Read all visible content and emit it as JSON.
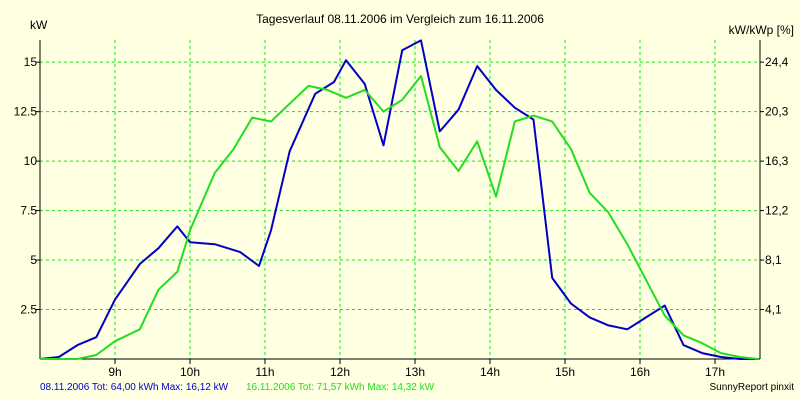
{
  "chart_data": {
    "type": "line",
    "title": "Tagesverlauf 08.11.2006 im Vergleich zum 16.11.2006",
    "ylabel_left": "kW",
    "ylabel_right": "kW/kWp [%]",
    "xlim": [
      8.0,
      17.6
    ],
    "ylim": [
      0,
      16.12
    ],
    "x_ticks": [
      {
        "value": 9,
        "label": "9h"
      },
      {
        "value": 10,
        "label": "10h"
      },
      {
        "value": 11,
        "label": "11h"
      },
      {
        "value": 12,
        "label": "12h"
      },
      {
        "value": 13,
        "label": "13h"
      },
      {
        "value": 14,
        "label": "14h"
      },
      {
        "value": 15,
        "label": "15h"
      },
      {
        "value": 16,
        "label": "16h"
      },
      {
        "value": 17,
        "label": "17h"
      }
    ],
    "y_ticks_left": [
      {
        "value": 2.5,
        "label": "2.5"
      },
      {
        "value": 5,
        "label": "5"
      },
      {
        "value": 7.5,
        "label": "7.5"
      },
      {
        "value": 10,
        "label": "10"
      },
      {
        "value": 12.5,
        "label": "12.5"
      },
      {
        "value": 15,
        "label": "15"
      }
    ],
    "y_ticks_right": [
      {
        "value": 2.5,
        "label": "4,1"
      },
      {
        "value": 5,
        "label": "8,1"
      },
      {
        "value": 7.5,
        "label": "12,2"
      },
      {
        "value": 10,
        "label": "16,3"
      },
      {
        "value": 12.5,
        "label": "20,3"
      },
      {
        "value": 15,
        "label": "24,4"
      }
    ],
    "grid": true,
    "series": [
      {
        "name": "08.11.2006",
        "color": "#0000c8",
        "x": [
          8.0,
          8.25,
          8.5,
          8.75,
          9.0,
          9.33,
          9.58,
          9.83,
          10.0,
          10.33,
          10.67,
          10.92,
          11.08,
          11.33,
          11.67,
          11.92,
          12.08,
          12.33,
          12.58,
          12.83,
          13.08,
          13.33,
          13.58,
          13.83,
          14.08,
          14.33,
          14.58,
          14.83,
          15.08,
          15.33,
          15.58,
          15.83,
          16.08,
          16.33,
          16.58,
          16.83,
          17.08,
          17.33,
          17.58
        ],
        "y": [
          0,
          0.1,
          0.7,
          1.1,
          3.0,
          4.8,
          5.6,
          6.7,
          5.9,
          5.8,
          5.4,
          4.7,
          6.5,
          10.5,
          13.4,
          14.0,
          15.1,
          13.9,
          10.8,
          15.6,
          16.1,
          11.5,
          12.6,
          14.8,
          13.6,
          12.7,
          12.1,
          4.1,
          2.8,
          2.1,
          1.7,
          1.5,
          2.1,
          2.7,
          0.7,
          0.3,
          0.1,
          0,
          0
        ]
      },
      {
        "name": "16.11.2006",
        "color": "#22dd22",
        "x": [
          8.0,
          8.5,
          8.75,
          9.0,
          9.33,
          9.58,
          9.83,
          10.0,
          10.33,
          10.58,
          10.83,
          11.08,
          11.33,
          11.58,
          11.83,
          12.08,
          12.33,
          12.58,
          12.83,
          13.08,
          13.33,
          13.58,
          13.83,
          14.08,
          14.33,
          14.58,
          14.83,
          15.08,
          15.33,
          15.58,
          15.83,
          16.08,
          16.33,
          16.58,
          16.83,
          17.08,
          17.33,
          17.58
        ],
        "y": [
          0,
          0,
          0.2,
          0.9,
          1.5,
          3.5,
          4.4,
          6.5,
          9.4,
          10.6,
          12.2,
          12.0,
          12.9,
          13.8,
          13.6,
          13.2,
          13.6,
          12.5,
          13.1,
          14.3,
          10.7,
          9.5,
          11.0,
          8.2,
          12.0,
          12.3,
          12.0,
          10.6,
          8.4,
          7.4,
          5.8,
          4.0,
          2.2,
          1.2,
          0.8,
          0.3,
          0.1,
          0
        ]
      }
    ]
  },
  "footer": {
    "legend_blue": "08.11.2006 Tot: 64,00 kWh Max: 16,12 kW",
    "legend_green": "16.11.2006 Tot: 71,57 kWh Max: 14,32 kW",
    "credit": "SunnyReport pinxit"
  },
  "colors": {
    "background": "#ffffe1",
    "grid": "#22dd22",
    "axis": "#000000"
  }
}
